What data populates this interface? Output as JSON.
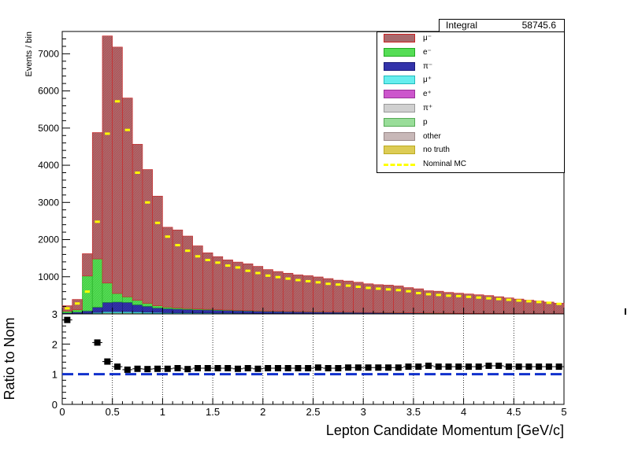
{
  "stat_box": {
    "label": "Integral",
    "value": "58745.6"
  },
  "legend": [
    {
      "label": "μ⁻",
      "fill": "#a86a6e",
      "border": "#cc2222",
      "kind": "box"
    },
    {
      "label": "e⁻",
      "fill": "#55dd55",
      "border": "#22aa22",
      "kind": "box"
    },
    {
      "label": "π⁻",
      "fill": "#3333aa",
      "border": "#1a1a77",
      "kind": "box"
    },
    {
      "label": "μ⁺",
      "fill": "#66eeee",
      "border": "#22bbbb",
      "kind": "box"
    },
    {
      "label": "e⁺",
      "fill": "#cc55cc",
      "border": "#993399",
      "kind": "box"
    },
    {
      "label": "π⁺",
      "fill": "#d0d0d0",
      "border": "#999999",
      "kind": "box"
    },
    {
      "label": "p",
      "fill": "#99dd99",
      "border": "#55aa55",
      "kind": "box"
    },
    {
      "label": "other",
      "fill": "#c8b8b8",
      "border": "#998888",
      "kind": "box"
    },
    {
      "label": "no truth",
      "fill": "#ddcc55",
      "border": "#bbaa22",
      "kind": "box"
    },
    {
      "label": "Nominal MC",
      "fill": "#ffff00",
      "border": "#ffff00",
      "kind": "line"
    }
  ],
  "chart_data": [
    {
      "type": "bar",
      "ylabel": "Events / bin",
      "ylim": [
        0,
        7600
      ],
      "xlim": [
        0,
        5
      ],
      "yticks": [
        "1000",
        "2000",
        "3000",
        "4000",
        "5000",
        "6000",
        "7000"
      ],
      "bin_width": 0.1,
      "x_bins_low": [
        0.0,
        0.1,
        0.2,
        0.3,
        0.4,
        0.5,
        0.6,
        0.7,
        0.8,
        0.9,
        1.0,
        1.1,
        1.2,
        1.3,
        1.4,
        1.5,
        1.6,
        1.7,
        1.8,
        1.9,
        2.0,
        2.1,
        2.2,
        2.3,
        2.4,
        2.5,
        2.6,
        2.7,
        2.8,
        2.9,
        3.0,
        3.1,
        3.2,
        3.3,
        3.4,
        3.5,
        3.6,
        3.7,
        3.8,
        3.9,
        4.0,
        4.1,
        4.2,
        4.3,
        4.4,
        4.5,
        4.6,
        4.7,
        4.8,
        4.9
      ],
      "series": [
        {
          "name": "μ⁻",
          "values": [
            150,
            280,
            600,
            3400,
            6650,
            6630,
            5350,
            4200,
            3600,
            2950,
            2150,
            2100,
            1950,
            1700,
            1520,
            1430,
            1350,
            1300,
            1260,
            1200,
            1120,
            1070,
            1030,
            990,
            970,
            940,
            900,
            860,
            840,
            810,
            770,
            750,
            740,
            720,
            680,
            650,
            600,
            590,
            560,
            540,
            520,
            500,
            480,
            450,
            420,
            390,
            360,
            340,
            310,
            280
          ]
        },
        {
          "name": "e⁻",
          "values": [
            40,
            60,
            940,
            1300,
            520,
            230,
            150,
            120,
            80,
            60,
            40,
            30,
            25,
            20,
            18,
            15,
            12,
            10,
            10,
            8,
            8,
            7,
            6,
            5,
            5,
            5,
            4,
            4,
            4,
            3,
            3,
            3,
            3,
            3,
            2,
            2,
            2,
            2,
            2,
            2,
            2,
            2,
            2,
            2,
            2,
            2,
            2,
            2,
            2,
            2
          ]
        },
        {
          "name": "π⁻",
          "values": [
            20,
            40,
            60,
            140,
            250,
            260,
            250,
            190,
            160,
            120,
            110,
            100,
            90,
            85,
            80,
            75,
            70,
            65,
            60,
            55,
            50,
            48,
            45,
            42,
            40,
            38,
            36,
            34,
            32,
            30,
            28,
            26,
            24,
            22,
            20,
            18,
            16,
            14,
            12,
            11,
            10,
            9,
            8,
            7,
            6,
            5,
            5,
            4,
            4,
            3
          ]
        },
        {
          "name": "μ⁺",
          "values": [
            5,
            5,
            10,
            20,
            30,
            30,
            30,
            30,
            25,
            25,
            20,
            20,
            20,
            18,
            18,
            16,
            16,
            15,
            14,
            13,
            12,
            12,
            11,
            10,
            10,
            9,
            9,
            8,
            8,
            7,
            7,
            6,
            6,
            5,
            5,
            5,
            4,
            4,
            4,
            3,
            3,
            3,
            3,
            3,
            2,
            2,
            2,
            2,
            2,
            2
          ]
        },
        {
          "name": "p",
          "values": [
            5,
            5,
            10,
            20,
            30,
            30,
            30,
            25,
            20,
            15,
            12,
            10,
            10,
            8,
            8,
            6,
            6,
            5,
            5,
            4,
            4,
            4,
            3,
            3,
            3,
            3,
            2,
            2,
            2,
            2,
            2,
            2,
            2,
            2,
            1,
            1,
            1,
            1,
            1,
            1,
            1,
            1,
            1,
            1,
            1,
            1,
            1,
            1,
            1,
            1
          ]
        },
        {
          "name": "Nominal MC",
          "values": [
            150,
            280,
            600,
            2480,
            4850,
            5720,
            4950,
            3800,
            3000,
            2450,
            2080,
            1850,
            1700,
            1550,
            1450,
            1380,
            1300,
            1250,
            1160,
            1100,
            1030,
            990,
            950,
            910,
            880,
            850,
            810,
            790,
            760,
            730,
            700,
            680,
            660,
            640,
            610,
            560,
            530,
            510,
            490,
            480,
            460,
            440,
            420,
            400,
            380,
            360,
            340,
            320,
            300,
            270
          ]
        }
      ]
    },
    {
      "type": "scatter",
      "xlabel": "Lepton Candidate Momentum [GeV/c]",
      "ylabel": "Ratio to Nom",
      "ylim": [
        0,
        3
      ],
      "xlim": [
        0,
        5
      ],
      "xticks": [
        "0",
        "0.5",
        "1",
        "1.5",
        "2",
        "2.5",
        "3",
        "3.5",
        "4",
        "4.5",
        "5"
      ],
      "yticks": [
        "0",
        "1",
        "2",
        "3"
      ],
      "reference_line": 1,
      "x": [
        0.05,
        0.35,
        0.45,
        0.55,
        0.65,
        0.75,
        0.85,
        0.95,
        1.05,
        1.15,
        1.25,
        1.35,
        1.45,
        1.55,
        1.65,
        1.75,
        1.85,
        1.95,
        2.05,
        2.15,
        2.25,
        2.35,
        2.45,
        2.55,
        2.65,
        2.75,
        2.85,
        2.95,
        3.05,
        3.15,
        3.25,
        3.35,
        3.45,
        3.55,
        3.65,
        3.75,
        3.85,
        3.95,
        4.05,
        4.15,
        4.25,
        4.35,
        4.45,
        4.55,
        4.65,
        4.75,
        4.85,
        4.95
      ],
      "values": [
        2.8,
        2.05,
        1.42,
        1.25,
        1.15,
        1.18,
        1.17,
        1.18,
        1.18,
        1.2,
        1.17,
        1.2,
        1.2,
        1.2,
        1.2,
        1.18,
        1.2,
        1.18,
        1.2,
        1.2,
        1.2,
        1.2,
        1.2,
        1.22,
        1.2,
        1.2,
        1.22,
        1.22,
        1.22,
        1.22,
        1.22,
        1.22,
        1.25,
        1.25,
        1.28,
        1.25,
        1.25,
        1.25,
        1.25,
        1.25,
        1.28,
        1.28,
        1.25,
        1.25,
        1.25,
        1.25,
        1.25,
        1.25
      ]
    }
  ]
}
